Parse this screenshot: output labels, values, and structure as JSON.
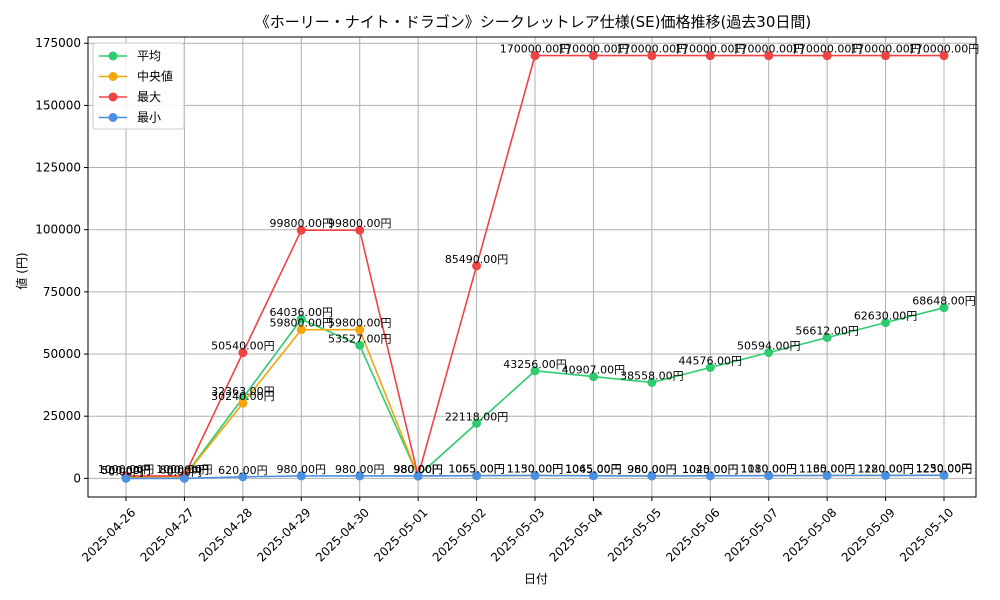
{
  "chart_data": {
    "type": "line",
    "title": "《ホーリー・ナイト・ドラゴン》シークレットレア仕様(SE)価格推移(過去30日間)",
    "xlabel": "日付",
    "ylabel": "値 (円)",
    "categories": [
      "2025-04-26",
      "2025-04-27",
      "2025-04-28",
      "2025-04-29",
      "2025-04-30",
      "2025-05-01",
      "2025-05-02",
      "2025-05-03",
      "2025-05-04",
      "2025-05-05",
      "2025-05-06",
      "2025-05-07",
      "2025-05-08",
      "2025-05-09",
      "2025-05-10"
    ],
    "ylim": [
      -7500,
      177500
    ],
    "yticks": [
      0,
      25000,
      50000,
      75000,
      100000,
      125000,
      150000,
      175000
    ],
    "grid": true,
    "legend_position": "top-left",
    "label_suffix": "円",
    "series": [
      {
        "name": "平均",
        "color": "#2ecc71",
        "values": [
          500,
          800,
          32363,
          64036,
          53527,
          980,
          22118,
          43256,
          40907,
          38558,
          44576,
          50594,
          56612,
          62630,
          68648
        ],
        "labels": [
          "500.00円",
          "800.00円",
          "32363.00円",
          "64036.00円",
          "53527.00円",
          "980.00円",
          "22118.00円",
          "43256.00円",
          "40907.00円",
          "38558.00円",
          "44576.00円",
          "50594.00円",
          "56612.00円",
          "62630.00円",
          "68648.00円"
        ]
      },
      {
        "name": "中央値",
        "color": "#f5a50a",
        "values": [
          500,
          800,
          30240,
          59800,
          59800,
          980,
          1065,
          1150,
          1065,
          980,
          1045,
          1110,
          1165,
          1220,
          1250
        ],
        "labels": [
          "500.00円",
          "800.00円",
          "30240.00円",
          "59800.00円",
          "59800.00円",
          "980.00円",
          "1065.00円",
          "1150.00円",
          "1065.00円",
          "980.00円",
          "1045.00円",
          "1110.00円",
          "1165.00円",
          "1220.00円",
          "1250.00円"
        ]
      },
      {
        "name": "最大",
        "color": "#ef4444",
        "values": [
          1000,
          1000,
          50540,
          99800,
          99800,
          980,
          85490,
          170000,
          170000,
          170000,
          170000,
          170000,
          170000,
          170000,
          170000
        ],
        "labels": [
          "1000.00円",
          "1000.00円",
          "50540.00円",
          "99800.00円",
          "99800.00円",
          "980.00円",
          "85490.00円",
          "170000.00円",
          "170000.00円",
          "170000.00円",
          "170000.00円",
          "170000.00円",
          "170000.00円",
          "170000.00円",
          "170000.00円"
        ]
      },
      {
        "name": "最小",
        "color": "#4a90e2",
        "values": [
          0,
          0,
          620,
          980,
          980,
          980,
          1055,
          1130,
          1045,
          960,
          1020,
          1080,
          1130,
          1180,
          1230
        ],
        "labels": [
          "0.00円",
          "0.00円",
          "620.00円",
          "980.00円",
          "980.00円",
          "980.00円",
          "1055.00円",
          "1130.00円",
          "1045.00円",
          "960.00円",
          "1020.00円",
          "1080.00円",
          "1130.00円",
          "1180.00円",
          "1230.00円"
        ]
      }
    ]
  }
}
